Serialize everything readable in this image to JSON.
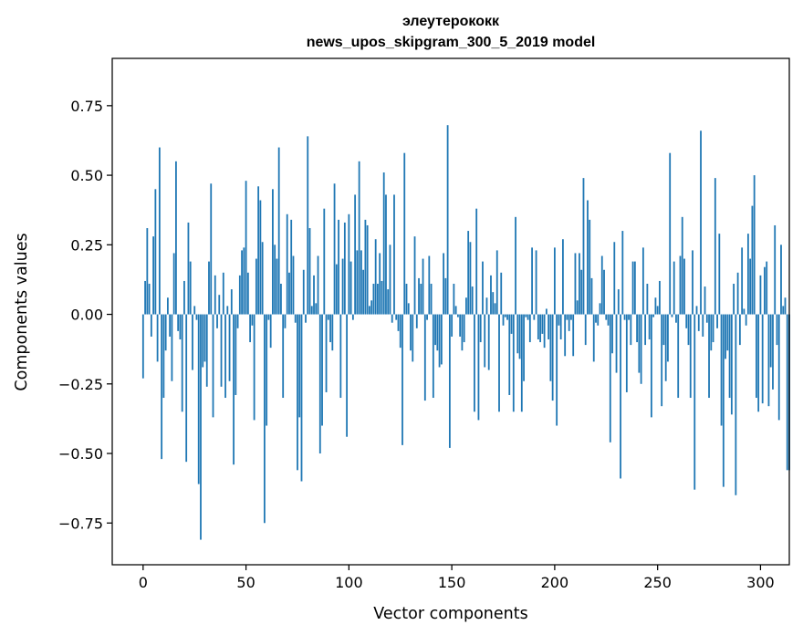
{
  "chart_data": {
    "type": "bar",
    "title": "элеутерококк",
    "subtitle": "news_upos_skipgram_300_5_2019 model",
    "xlabel": "Vector components",
    "ylabel": "Components values",
    "xlim": [
      -15,
      314
    ],
    "ylim": [
      -0.9,
      0.92
    ],
    "xticks": [
      0,
      50,
      100,
      150,
      200,
      250,
      300
    ],
    "xtick_labels": [
      "0",
      "50",
      "100",
      "150",
      "200",
      "250",
      "300"
    ],
    "yticks": [
      -0.75,
      -0.5,
      -0.25,
      0.0,
      0.25,
      0.5,
      0.75
    ],
    "ytick_labels": [
      "−0.75",
      "−0.50",
      "−0.25",
      "0.00",
      "0.25",
      "0.50",
      "0.75"
    ],
    "grid": false,
    "bar_color": "#1f77b4",
    "values": [
      -0.23,
      0.12,
      0.31,
      0.11,
      -0.08,
      0.28,
      0.45,
      -0.17,
      0.6,
      -0.52,
      -0.3,
      -0.13,
      0.06,
      -0.08,
      -0.24,
      0.22,
      0.55,
      -0.06,
      -0.09,
      -0.35,
      0.12,
      -0.53,
      0.33,
      0.19,
      -0.2,
      0.03,
      -0.02,
      -0.61,
      -0.81,
      -0.19,
      -0.17,
      -0.26,
      0.19,
      0.47,
      -0.37,
      0.14,
      -0.05,
      0.07,
      -0.26,
      0.15,
      -0.3,
      0.03,
      -0.24,
      0.09,
      -0.54,
      -0.29,
      -0.05,
      0.14,
      0.23,
      0.24,
      0.48,
      0.15,
      -0.1,
      -0.04,
      -0.38,
      0.2,
      0.46,
      0.41,
      0.26,
      -0.75,
      -0.4,
      -0.02,
      -0.12,
      0.45,
      0.25,
      0.2,
      0.6,
      0.11,
      -0.3,
      -0.05,
      0.36,
      0.15,
      0.34,
      0.21,
      -0.03,
      -0.56,
      -0.37,
      -0.6,
      0.16,
      -0.03,
      0.64,
      0.31,
      0.03,
      0.14,
      0.04,
      0.21,
      -0.5,
      -0.4,
      0.38,
      -0.28,
      -0.02,
      -0.1,
      -0.13,
      0.47,
      0.18,
      0.34,
      -0.3,
      0.2,
      0.33,
      -0.44,
      0.36,
      0.19,
      -0.02,
      0.43,
      0.23,
      0.55,
      0.23,
      0.16,
      0.34,
      0.32,
      0.03,
      0.05,
      0.11,
      0.27,
      0.11,
      0.22,
      0.12,
      0.51,
      0.43,
      0.09,
      0.25,
      -0.03,
      0.43,
      -0.02,
      -0.06,
      -0.12,
      -0.47,
      0.58,
      0.11,
      0.04,
      -0.13,
      -0.17,
      0.28,
      -0.05,
      0.13,
      0.11,
      0.2,
      -0.31,
      -0.02,
      0.21,
      0.11,
      -0.3,
      -0.11,
      -0.13,
      -0.19,
      -0.18,
      0.22,
      0.13,
      0.68,
      -0.48,
      -0.08,
      0.11,
      0.03,
      -0.01,
      -0.08,
      -0.13,
      -0.1,
      0.06,
      0.3,
      0.26,
      0.1,
      -0.35,
      0.38,
      -0.38,
      -0.1,
      0.19,
      -0.19,
      0.06,
      -0.2,
      0.14,
      0.08,
      0.04,
      0.23,
      -0.35,
      0.15,
      -0.04,
      -0.01,
      -0.02,
      -0.29,
      -0.07,
      -0.35,
      0.35,
      -0.14,
      -0.16,
      -0.35,
      -0.24,
      -0.01,
      -0.02,
      -0.1,
      0.24,
      -0.02,
      0.23,
      -0.09,
      -0.1,
      -0.07,
      -0.12,
      0.02,
      -0.09,
      -0.24,
      -0.31,
      0.24,
      -0.4,
      -0.04,
      -0.09,
      0.27,
      -0.15,
      -0.02,
      -0.06,
      -0.02,
      -0.15,
      0.22,
      0.05,
      0.22,
      0.16,
      0.49,
      -0.11,
      0.41,
      0.34,
      0.13,
      -0.17,
      -0.03,
      -0.04,
      0.04,
      0.21,
      0.16,
      -0.02,
      -0.04,
      -0.46,
      -0.14,
      0.26,
      -0.21,
      0.09,
      -0.59,
      0.3,
      -0.02,
      -0.28,
      -0.02,
      -0.11,
      0.19,
      0.19,
      -0.1,
      -0.21,
      -0.25,
      0.24,
      -0.11,
      0.11,
      -0.09,
      -0.37,
      -0.01,
      0.06,
      0.03,
      0.12,
      -0.33,
      -0.11,
      -0.24,
      -0.17,
      0.58,
      -0.01,
      0.19,
      -0.03,
      -0.3,
      0.21,
      0.35,
      0.2,
      -0.05,
      -0.11,
      -0.3,
      0.23,
      -0.63,
      0.03,
      -0.06,
      0.66,
      -0.08,
      0.1,
      -0.03,
      -0.3,
      -0.13,
      -0.1,
      0.49,
      -0.05,
      0.29,
      -0.4,
      -0.62,
      -0.16,
      -0.13,
      -0.3,
      -0.36,
      0.11,
      -0.65,
      0.15,
      -0.11,
      0.24,
      0.02,
      -0.04,
      0.29,
      0.2,
      0.39,
      0.5,
      -0.3,
      -0.35,
      0.14,
      -0.32,
      0.17,
      0.19,
      -0.33,
      -0.19,
      -0.27,
      0.32,
      -0.11,
      -0.38,
      0.25,
      0.03,
      0.06,
      -0.56,
      -0.56
    ]
  }
}
